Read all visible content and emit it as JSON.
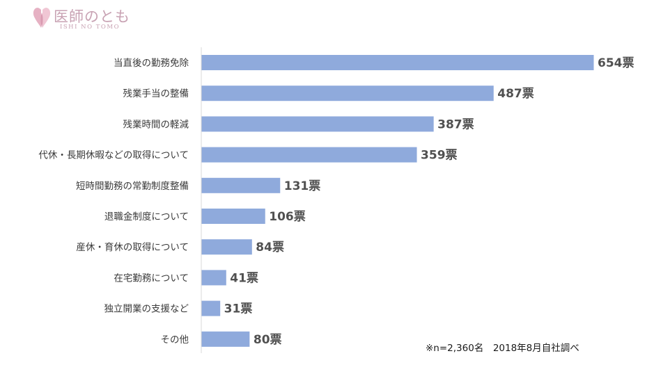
{
  "logo": {
    "text": "医師のとも",
    "subtext": "ISHI NO TOMO"
  },
  "chart_data": {
    "type": "bar",
    "orientation": "horizontal",
    "categories": [
      "当直後の勤務免除",
      "残業手当の整備",
      "残業時間の軽減",
      "代休・長期休暇などの取得について",
      "短時間勤務の常勤制度整備",
      "退職金制度について",
      "産休・育休の取得について",
      "在宅勤務について",
      "独立開業の支援など",
      "その他"
    ],
    "values": [
      654,
      487,
      387,
      359,
      131,
      106,
      84,
      41,
      31,
      80
    ],
    "value_labels": [
      "654票",
      "487票",
      "387票",
      "359票",
      "131票",
      "106票",
      "84票",
      "41票",
      "31票",
      "80票"
    ],
    "bar_color": "#8faadc",
    "axis_color": "#d9d9d9",
    "xlim": [
      0,
      654
    ],
    "grid": false,
    "legend": "none"
  },
  "footnote": "※n=2,360名　2018年8月自社調べ"
}
